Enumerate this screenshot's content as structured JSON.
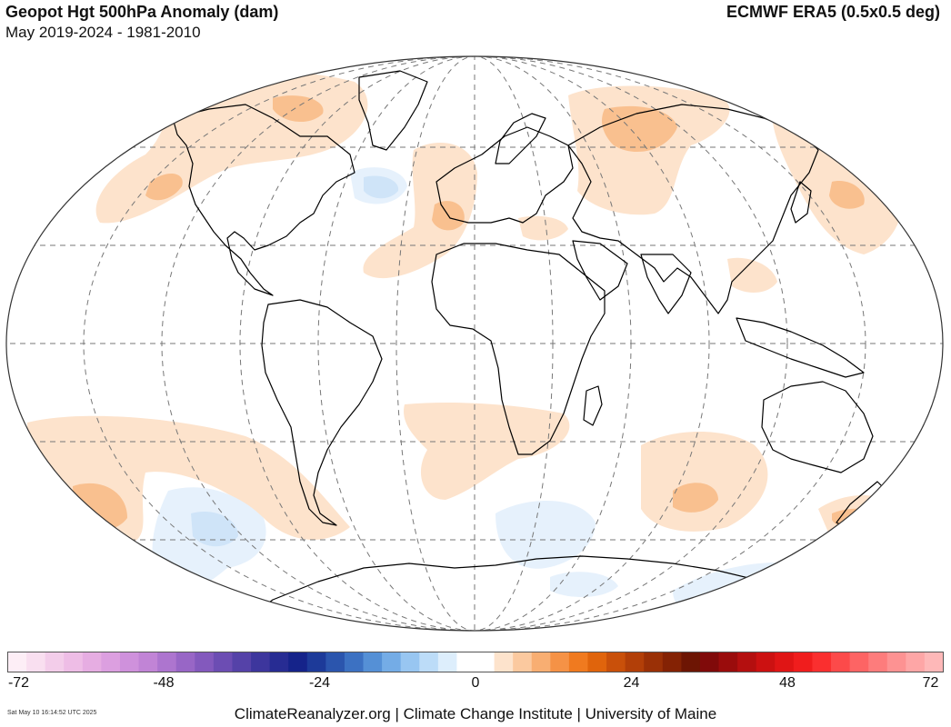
{
  "header": {
    "title": "Geopot Hgt 500hPa Anomaly (dam)",
    "subtitle": "May 2019-2024 - 1981-2010",
    "source": "ECMWF ERA5 (0.5x0.5 deg)"
  },
  "colorbar": {
    "min": -72,
    "max": 72,
    "tick_labels": [
      "-72",
      "-48",
      "-24",
      "0",
      "24",
      "48",
      "72"
    ],
    "tick_values": [
      -72,
      -48,
      -24,
      0,
      24,
      48,
      72
    ]
  },
  "footer": {
    "timestamp": "Sat May 10 16:14:52 UTC 2025",
    "credit": "ClimateReanalyzer.org | Climate Change Institute | University of Maine"
  },
  "colors": {
    "positive_light": "#fde3cc",
    "positive_mid": "#f9c08f",
    "negative_light": "#e6f1fc",
    "negative_mid": "#cfe4f8",
    "land_outline": "#000000",
    "graticule": "#777777"
  }
}
